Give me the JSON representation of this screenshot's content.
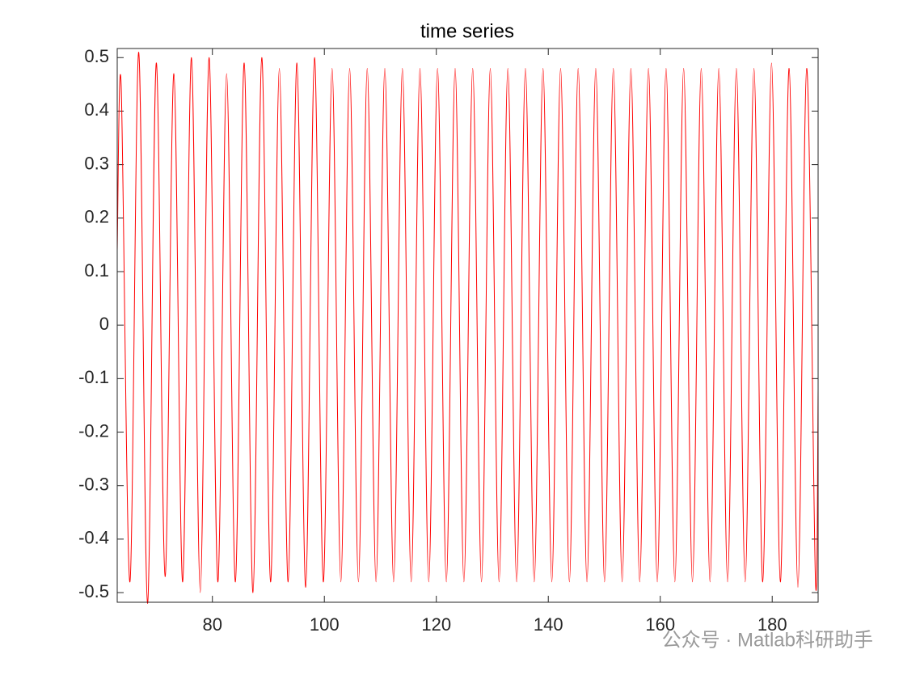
{
  "chart_data": {
    "type": "line",
    "title": "time series",
    "x": [
      63.0,
      63.7,
      65.27,
      66.84,
      68.41,
      69.98,
      71.55,
      73.12,
      74.69,
      76.26,
      77.83,
      79.4,
      80.97,
      82.54,
      84.11,
      85.68,
      87.25,
      88.82,
      90.39,
      91.96,
      93.53,
      95.1,
      96.67,
      98.24,
      99.81,
      101.38,
      102.95,
      104.52,
      106.09,
      107.66,
      109.23,
      110.8,
      112.37,
      113.94,
      115.51,
      117.08,
      118.65,
      120.22,
      121.79,
      123.36,
      124.93,
      126.5,
      128.07,
      129.64,
      131.21,
      132.78,
      134.35,
      135.92,
      137.49,
      139.06,
      140.63,
      142.2,
      143.77,
      145.34,
      146.91,
      148.48,
      150.05,
      151.62,
      153.19,
      154.76,
      156.33,
      157.9,
      159.47,
      161.04,
      162.61,
      164.18,
      165.75,
      167.32,
      168.89,
      170.46,
      172.03,
      173.6,
      175.17,
      176.74,
      178.31,
      179.88,
      181.45,
      183.02,
      184.59,
      186.16,
      187.73,
      188.2
    ],
    "values": [
      0.14,
      0.45,
      -0.48,
      0.51,
      -0.52,
      0.49,
      -0.47,
      0.47,
      -0.48,
      0.5,
      -0.5,
      0.5,
      -0.48,
      0.47,
      -0.48,
      0.49,
      -0.5,
      0.5,
      -0.48,
      0.48,
      -0.48,
      0.49,
      -0.49,
      0.5,
      -0.48,
      0.48,
      -0.48,
      0.48,
      -0.48,
      0.48,
      -0.48,
      0.48,
      -0.48,
      0.48,
      -0.48,
      0.48,
      -0.48,
      0.48,
      -0.48,
      0.48,
      -0.48,
      0.48,
      -0.48,
      0.48,
      -0.48,
      0.48,
      -0.48,
      0.48,
      -0.48,
      0.48,
      -0.48,
      0.48,
      -0.48,
      0.48,
      -0.48,
      0.48,
      -0.48,
      0.48,
      -0.48,
      0.48,
      -0.48,
      0.48,
      -0.48,
      0.48,
      -0.48,
      0.48,
      -0.48,
      0.48,
      -0.48,
      0.48,
      -0.48,
      0.48,
      -0.48,
      0.48,
      -0.48,
      0.49,
      -0.48,
      0.48,
      -0.49,
      0.48,
      -0.48,
      -0.12
    ],
    "color": "#ff0000",
    "xlim": [
      63,
      188.2
    ],
    "xticks": [
      80,
      100,
      120,
      140,
      160,
      180
    ],
    "ylim": [
      -0.518,
      0.517
    ],
    "yticks": [
      -0.5,
      -0.4,
      -0.3,
      -0.2,
      -0.1,
      0,
      0.1,
      0.2,
      0.3,
      0.4,
      0.5
    ],
    "grid": false,
    "watermark": "公众号 · Matlab科研助手"
  }
}
